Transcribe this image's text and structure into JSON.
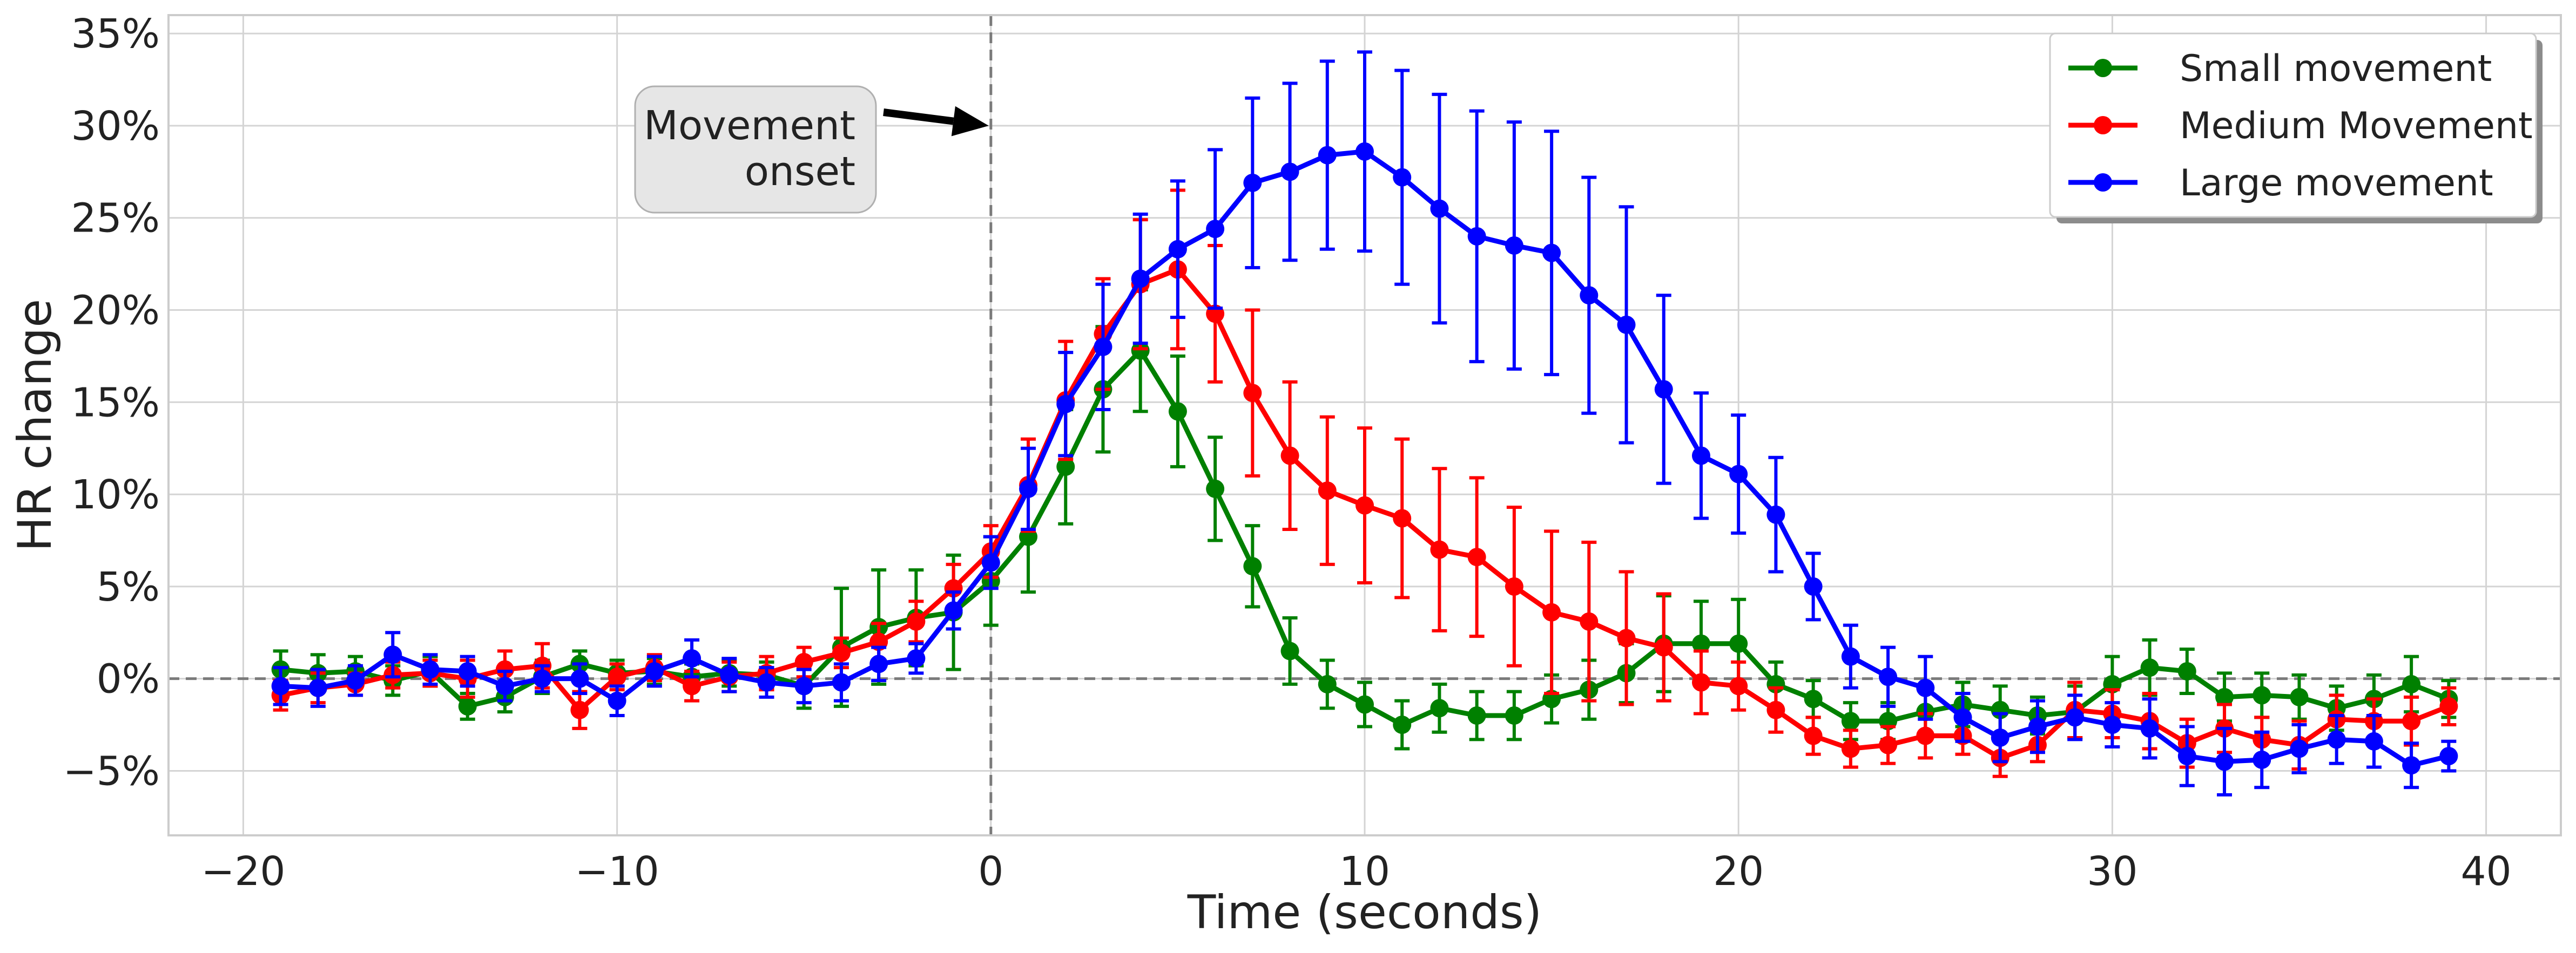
{
  "chart_data": {
    "type": "line",
    "xlabel": "Time (seconds)",
    "ylabel": "HR change",
    "xlim": [
      -22,
      42
    ],
    "ylim": [
      -8.5,
      36
    ],
    "x_ticks": [
      -20,
      -10,
      0,
      10,
      20,
      30,
      40
    ],
    "x_tick_labels": [
      "−20",
      "−10",
      "0",
      "10",
      "20",
      "30",
      "40"
    ],
    "y_ticks": [
      -5,
      0,
      5,
      10,
      15,
      20,
      25,
      30,
      35
    ],
    "y_tick_labels": [
      "−5%",
      "0%",
      "5%",
      "10%",
      "15%",
      "20%",
      "25%",
      "30%",
      "35%"
    ],
    "grid": true,
    "legend_position": "top-right",
    "reference_lines": {
      "vertical_x": 0,
      "horizontal_y": 0
    },
    "annotation": {
      "lines": [
        "Movement",
        "onset"
      ],
      "target": [
        0,
        30
      ]
    },
    "x": [
      -19,
      -18,
      -17,
      -16,
      -15,
      -14,
      -13,
      -12,
      -11,
      -10,
      -9,
      -8,
      -7,
      -6,
      -5,
      -4,
      -3,
      -2,
      -1,
      0,
      1,
      2,
      3,
      4,
      5,
      6,
      7,
      8,
      9,
      10,
      11,
      12,
      13,
      14,
      15,
      16,
      17,
      18,
      19,
      20,
      21,
      22,
      23,
      24,
      25,
      26,
      27,
      28,
      29,
      30,
      31,
      32,
      33,
      34,
      35,
      36,
      37,
      38,
      39
    ],
    "series": [
      {
        "name": "Small movement",
        "color": "#008000",
        "values": [
          0.5,
          0.3,
          0.4,
          -0.1,
          0.4,
          -1.5,
          -1.0,
          0.1,
          0.8,
          0.3,
          0.4,
          0.1,
          0.3,
          0.2,
          -0.4,
          1.7,
          2.8,
          3.3,
          3.6,
          5.3,
          7.7,
          11.5,
          15.7,
          17.8,
          14.5,
          10.3,
          6.1,
          1.5,
          -0.3,
          -1.4,
          -2.5,
          -1.6,
          -2.0,
          -2.0,
          -1.1,
          -0.6,
          0.3,
          1.9,
          1.9,
          1.9,
          -0.3,
          -1.1,
          -2.3,
          -2.3,
          -1.8,
          -1.4,
          -1.7,
          -2.0,
          -1.8,
          -0.3,
          0.6,
          0.4,
          -1.0,
          -0.9,
          -1.0,
          -1.6,
          -1.1,
          -0.3,
          -1.1
        ],
        "errors": [
          1.0,
          1.0,
          0.8,
          0.8,
          0.8,
          0.7,
          0.8,
          0.9,
          0.7,
          0.7,
          0.7,
          0.7,
          0.7,
          0.7,
          1.2,
          3.2,
          3.1,
          2.6,
          3.1,
          2.4,
          3.0,
          3.1,
          3.4,
          3.3,
          3.0,
          2.8,
          2.2,
          1.8,
          1.3,
          1.2,
          1.3,
          1.3,
          1.3,
          1.3,
          1.3,
          1.6,
          1.6,
          2.6,
          2.3,
          2.4,
          1.2,
          1.0,
          1.0,
          1.0,
          1.3,
          1.2,
          1.3,
          1.0,
          1.4,
          1.5,
          1.5,
          1.2,
          1.3,
          1.2,
          1.2,
          1.2,
          1.3,
          1.5,
          1.0
        ]
      },
      {
        "name": "Medium Movement",
        "color": "#ff0000",
        "values": [
          -0.9,
          -0.5,
          -0.3,
          0.2,
          0.3,
          0.0,
          0.5,
          0.7,
          -1.7,
          0.1,
          0.6,
          -0.4,
          0.1,
          0.3,
          0.9,
          1.4,
          2.0,
          3.1,
          4.9,
          6.9,
          10.5,
          15.1,
          18.7,
          21.4,
          22.2,
          19.8,
          15.5,
          12.1,
          10.2,
          9.4,
          8.7,
          7.0,
          6.6,
          5.0,
          3.6,
          3.1,
          2.2,
          1.7,
          -0.2,
          -0.4,
          -1.7,
          -3.1,
          -3.8,
          -3.6,
          -3.1,
          -3.1,
          -4.3,
          -3.6,
          -1.7,
          -1.9,
          -2.3,
          -3.5,
          -2.7,
          -3.3,
          -3.6,
          -2.2,
          -2.3,
          -2.3,
          -1.5
        ],
        "errors": [
          0.8,
          0.8,
          0.6,
          0.7,
          0.7,
          1.0,
          1.0,
          1.2,
          1.0,
          0.7,
          0.7,
          0.8,
          0.8,
          0.9,
          0.8,
          0.8,
          1.0,
          1.1,
          1.3,
          1.4,
          2.5,
          3.2,
          3.0,
          3.5,
          4.3,
          3.7,
          4.5,
          4.0,
          4.0,
          4.2,
          4.3,
          4.4,
          4.3,
          4.3,
          4.4,
          4.3,
          3.6,
          2.9,
          1.7,
          1.3,
          1.2,
          1.0,
          1.0,
          1.0,
          1.2,
          1.0,
          1.0,
          0.9,
          1.5,
          1.3,
          1.5,
          1.3,
          1.3,
          1.2,
          1.3,
          1.3,
          1.2,
          1.3,
          1.0
        ]
      },
      {
        "name": "Large movement",
        "color": "#0000ff",
        "values": [
          -0.4,
          -0.5,
          -0.1,
          1.3,
          0.5,
          0.4,
          -0.4,
          0.0,
          0.0,
          -1.2,
          0.4,
          1.1,
          0.2,
          -0.2,
          -0.4,
          -0.2,
          0.8,
          1.1,
          3.7,
          6.3,
          10.3,
          14.9,
          18.0,
          21.7,
          23.3,
          24.4,
          26.9,
          27.5,
          28.4,
          28.6,
          27.2,
          25.5,
          24.0,
          23.5,
          23.1,
          20.8,
          19.2,
          15.7,
          12.1,
          11.1,
          8.9,
          5.0,
          1.2,
          0.1,
          -0.5,
          -2.1,
          -3.2,
          -2.6,
          -2.1,
          -2.5,
          -2.7,
          -4.2,
          -4.5,
          -4.4,
          -3.8,
          -3.3,
          -3.4,
          -4.7,
          -4.2
        ],
        "errors": [
          1.0,
          1.0,
          0.8,
          1.2,
          0.8,
          0.8,
          0.8,
          0.7,
          0.8,
          0.8,
          0.8,
          1.0,
          0.9,
          0.8,
          0.9,
          1.0,
          0.9,
          0.8,
          1.0,
          1.4,
          2.2,
          2.8,
          3.4,
          3.5,
          3.7,
          4.3,
          4.6,
          4.8,
          5.1,
          5.4,
          5.8,
          6.2,
          6.8,
          6.7,
          6.6,
          6.4,
          6.4,
          5.1,
          3.4,
          3.2,
          3.1,
          1.8,
          1.7,
          1.6,
          1.7,
          1.3,
          1.3,
          1.4,
          1.2,
          1.2,
          1.6,
          1.6,
          1.8,
          1.5,
          1.3,
          1.3,
          1.4,
          1.2,
          0.8
        ]
      }
    ]
  }
}
